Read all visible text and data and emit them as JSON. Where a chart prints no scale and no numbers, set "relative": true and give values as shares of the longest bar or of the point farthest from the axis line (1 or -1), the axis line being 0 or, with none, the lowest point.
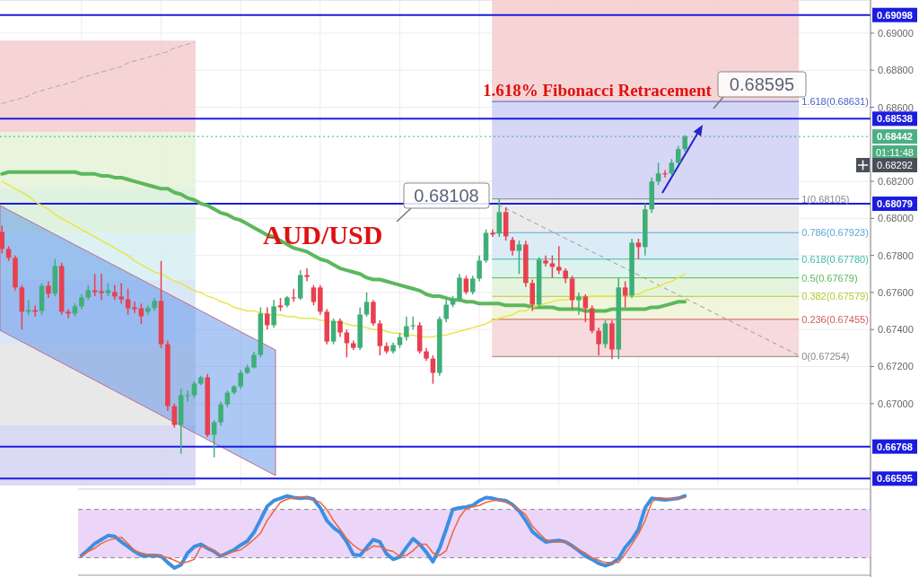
{
  "chart_data": [
    {
      "type": "candlestick",
      "title": "AUD/USD",
      "tick_labels": "y",
      "grid": true,
      "categories": [
        null,
        null,
        null,
        null,
        null,
        null,
        null,
        null,
        null,
        null,
        null,
        null,
        null,
        null,
        null,
        null,
        null,
        null,
        null,
        null,
        null,
        null,
        null,
        null,
        null,
        null,
        null,
        null,
        null,
        null,
        null,
        null,
        null,
        null,
        null,
        null,
        null,
        null,
        null,
        null,
        null,
        null,
        null,
        null,
        null,
        null,
        null,
        null,
        null,
        null,
        null,
        null,
        null,
        null,
        null,
        null,
        null,
        null,
        null,
        null,
        null,
        null,
        null,
        null,
        null,
        null,
        null,
        null,
        null,
        null,
        null,
        null,
        null,
        null,
        null,
        null,
        null,
        null,
        null,
        null,
        null,
        null,
        null,
        null,
        null,
        null,
        null,
        null,
        null,
        null,
        null,
        null,
        null,
        null,
        null,
        null,
        null,
        null,
        null,
        null,
        null,
        null,
        null,
        null
      ],
      "ohlc": [
        [
          0.67927,
          0.6796,
          0.6781,
          0.67835
        ],
        [
          0.67835,
          0.6785,
          0.6777,
          0.67787
        ],
        [
          0.67787,
          0.678,
          0.6761,
          0.67627
        ],
        [
          0.67627,
          0.6764,
          0.674,
          0.67496
        ],
        [
          0.67496,
          0.6756,
          0.6748,
          0.67505
        ],
        [
          0.67505,
          0.6753,
          0.6747,
          0.67496
        ],
        [
          0.675,
          0.6765,
          0.6748,
          0.67636
        ],
        [
          0.67636,
          0.6766,
          0.6757,
          0.67593
        ],
        [
          0.67593,
          0.6778,
          0.6758,
          0.67743
        ],
        [
          0.67743,
          0.6776,
          0.6748,
          0.67496
        ],
        [
          0.67496,
          0.6751,
          0.6746,
          0.67486
        ],
        [
          0.67486,
          0.6754,
          0.6747,
          0.67525
        ],
        [
          0.67525,
          0.6759,
          0.6751,
          0.67573
        ],
        [
          0.67573,
          0.6764,
          0.6756,
          0.67612
        ],
        [
          0.67612,
          0.677,
          0.6758,
          0.67602
        ],
        [
          0.67607,
          0.677,
          0.6756,
          0.67597
        ],
        [
          0.67597,
          0.6765,
          0.6758,
          0.67612
        ],
        [
          0.67602,
          0.6764,
          0.6756,
          0.67578
        ],
        [
          0.67578,
          0.6765,
          0.6754,
          0.67563
        ],
        [
          0.67563,
          0.6762,
          0.6748,
          0.67515
        ],
        [
          0.6752,
          0.6755,
          0.6749,
          0.6751
        ],
        [
          0.67515,
          0.6754,
          0.6743,
          0.67471
        ],
        [
          0.67496,
          0.6753,
          0.6748,
          0.67515
        ],
        [
          0.67515,
          0.6757,
          0.675,
          0.67554
        ],
        [
          0.67554,
          0.6777,
          0.673,
          0.67321
        ],
        [
          0.67321,
          0.6734,
          0.6696,
          0.66986
        ],
        [
          0.66986,
          0.67,
          0.6687,
          0.66885
        ],
        [
          0.66885,
          0.6708,
          0.6673,
          0.67045
        ],
        [
          0.6704,
          0.6707,
          0.6701,
          0.67045
        ],
        [
          0.67045,
          0.6712,
          0.6703,
          0.67108
        ],
        [
          0.67108,
          0.6715,
          0.671,
          0.67142
        ],
        [
          0.67142,
          0.6716,
          0.6682,
          0.66831
        ],
        [
          0.66831,
          0.6691,
          0.6671,
          0.66899
        ],
        [
          0.66899,
          0.6701,
          0.6688,
          0.66996
        ],
        [
          0.66996,
          0.6707,
          0.6698,
          0.67059
        ],
        [
          0.67059,
          0.671,
          0.6705,
          0.67093
        ],
        [
          0.67093,
          0.6718,
          0.6708,
          0.67166
        ],
        [
          0.67166,
          0.6721,
          0.6716,
          0.67195
        ],
        [
          0.67195,
          0.6728,
          0.6719,
          0.67263
        ],
        [
          0.67263,
          0.6752,
          0.6725,
          0.67486
        ],
        [
          0.67486,
          0.6752,
          0.674,
          0.67423
        ],
        [
          0.67423,
          0.6756,
          0.6741,
          0.67525
        ],
        [
          0.6753,
          0.6757,
          0.675,
          0.6752
        ],
        [
          0.6753,
          0.6758,
          0.6752,
          0.67573
        ],
        [
          0.67573,
          0.6762,
          0.6755,
          0.67568
        ],
        [
          0.67568,
          0.6772,
          0.6756,
          0.67694
        ],
        [
          0.67694,
          0.6773,
          0.6766,
          0.67684
        ],
        [
          0.67627,
          0.6764,
          0.6753,
          0.67549
        ],
        [
          0.67627,
          0.6764,
          0.6748,
          0.67496
        ],
        [
          0.67496,
          0.6751,
          0.6732,
          0.67335
        ],
        [
          0.67335,
          0.6746,
          0.6732,
          0.67447
        ],
        [
          0.67447,
          0.6746,
          0.6736,
          0.67384
        ],
        [
          0.67384,
          0.674,
          0.6725,
          0.67326
        ],
        [
          0.67326,
          0.6734,
          0.6729,
          0.67301
        ],
        [
          0.67301,
          0.6752,
          0.6729,
          0.67481
        ],
        [
          0.67481,
          0.676,
          0.6747,
          0.67549
        ],
        [
          0.67549,
          0.6756,
          0.6742,
          0.67433
        ],
        [
          0.67433,
          0.6745,
          0.6726,
          0.67311
        ],
        [
          0.67311,
          0.6733,
          0.6727,
          0.67282
        ],
        [
          0.67282,
          0.6733,
          0.6727,
          0.67316
        ],
        [
          0.67316,
          0.6738,
          0.673,
          0.67359
        ],
        [
          0.67359,
          0.6747,
          0.6734,
          0.67418
        ],
        [
          0.67418,
          0.6747,
          0.674,
          0.67423
        ],
        [
          0.67423,
          0.6744,
          0.6727,
          0.67282
        ],
        [
          0.67282,
          0.673,
          0.6723,
          0.67243
        ],
        [
          0.67243,
          0.6726,
          0.67107,
          0.67166
        ],
        [
          0.67166,
          0.6747,
          0.6715,
          0.67457
        ],
        [
          0.67457,
          0.6756,
          0.6744,
          0.67534
        ],
        [
          0.67534,
          0.6758,
          0.6752,
          0.67563
        ],
        [
          0.67563,
          0.677,
          0.6755,
          0.6768
        ],
        [
          0.67675,
          0.6769,
          0.6759,
          0.67602
        ],
        [
          0.67602,
          0.6769,
          0.6759,
          0.67675
        ],
        [
          0.67675,
          0.678,
          0.6766,
          0.67772
        ],
        [
          0.67772,
          0.6794,
          0.6776,
          0.67922
        ],
        [
          0.67922,
          0.6794,
          0.679,
          0.67913
        ],
        [
          0.67918,
          0.68105,
          0.679,
          0.68034
        ],
        [
          0.68034,
          0.6806,
          0.6788,
          0.67903
        ],
        [
          0.67884,
          0.679,
          0.678,
          0.67825
        ],
        [
          0.67825,
          0.6788,
          0.677,
          0.67859
        ],
        [
          0.67859,
          0.6788,
          0.6763,
          0.67651
        ],
        [
          0.67651,
          0.6767,
          0.675,
          0.67534
        ],
        [
          0.67534,
          0.6779,
          0.6752,
          0.67777
        ],
        [
          0.67772,
          0.678,
          0.6774,
          0.67757
        ],
        [
          0.67757,
          0.678,
          0.6768,
          0.67738
        ],
        [
          0.67738,
          0.6785,
          0.677,
          0.67718
        ],
        [
          0.67718,
          0.6773,
          0.6765,
          0.67675
        ],
        [
          0.67675,
          0.6769,
          0.6751,
          0.67558
        ],
        [
          0.67558,
          0.676,
          0.6748,
          0.67578
        ],
        [
          0.67578,
          0.6759,
          0.6744,
          0.67515
        ],
        [
          0.67515,
          0.6753,
          0.6738,
          0.67393
        ],
        [
          0.67393,
          0.6741,
          0.6726,
          0.67321
        ],
        [
          0.67321,
          0.6745,
          0.673,
          0.67433
        ],
        [
          0.67433,
          0.6745,
          0.6724,
          0.67292
        ],
        [
          0.67292,
          0.6768,
          0.6724,
          0.67627
        ],
        [
          0.67627,
          0.6766,
          0.6752,
          0.67583
        ],
        [
          0.67583,
          0.6789,
          0.6757,
          0.67869
        ],
        [
          0.67869,
          0.6789,
          0.6778,
          0.67845
        ],
        [
          0.67845,
          0.6808,
          0.678,
          0.68049
        ],
        [
          0.68049,
          0.6822,
          0.6803,
          0.68199
        ],
        [
          0.68199,
          0.683,
          0.6818,
          0.68243
        ],
        [
          0.68243,
          0.6826,
          0.6822,
          0.68238
        ],
        [
          0.68243,
          0.6832,
          0.6823,
          0.68301
        ],
        [
          0.68301,
          0.6839,
          0.6829,
          0.68374
        ],
        [
          0.68374,
          0.6845,
          0.6836,
          0.68442
        ]
      ],
      "series": [
        {
          "type": "line",
          "color": "#5cb85c",
          "values": [
            0.6824,
            0.6825,
            0.6825,
            0.6825,
            0.6825,
            0.6825,
            0.6825,
            0.6825,
            0.6825,
            0.6825,
            0.6825,
            0.6825,
            0.6824,
            0.6824,
            0.6824,
            0.6823,
            0.6823,
            0.6822,
            0.6822,
            0.6821,
            0.682,
            0.6819,
            0.6818,
            0.6817,
            0.6816,
            0.6816,
            0.6814,
            0.6813,
            0.6811,
            0.681,
            0.6808,
            0.6807,
            0.6805,
            0.6803,
            0.6802,
            0.68,
            0.6799,
            0.6797,
            0.6795,
            0.6793,
            0.6791,
            0.679,
            0.6788,
            0.6786,
            0.6784,
            0.6783,
            0.6782,
            0.678,
            0.6778,
            0.6777,
            0.6775,
            0.6773,
            0.6772,
            0.6771,
            0.677,
            0.6768,
            0.6767,
            0.6767,
            0.6766,
            0.6765,
            0.6764,
            0.6763,
            0.6762,
            0.6761,
            0.6759,
            0.6758,
            0.6758,
            0.6757,
            0.6756,
            0.6756,
            0.6755,
            0.6755,
            0.6754,
            0.6754,
            0.6754,
            0.6754,
            0.6753,
            0.6753,
            0.6753,
            0.6753,
            0.6752,
            0.6752,
            0.6752,
            0.6752,
            0.6751,
            0.6751,
            0.6751,
            0.6751,
            0.675,
            0.675,
            0.675,
            0.675,
            0.6751,
            0.6751,
            0.6751,
            0.6751,
            0.6751,
            0.6751,
            0.6752,
            0.6752,
            0.6753,
            0.6754,
            0.6755,
            0.6755
          ]
        },
        {
          "type": "line",
          "color": "#e6e64a",
          "values": [
            0.682,
            0.6818,
            0.6816,
            0.6814,
            0.6812,
            0.6809,
            0.6807,
            0.6805,
            0.6802,
            0.68,
            0.6798,
            0.6796,
            0.6794,
            0.6792,
            0.679,
            0.6788,
            0.6786,
            0.6784,
            0.6782,
            0.678,
            0.6777,
            0.6775,
            0.6773,
            0.6771,
            0.677,
            0.6768,
            0.6766,
            0.6765,
            0.6763,
            0.6761,
            0.676,
            0.6758,
            0.6757,
            0.6755,
            0.6754,
            0.6752,
            0.6751,
            0.675,
            0.675,
            0.6749,
            0.6748,
            0.6748,
            0.6748,
            0.6747,
            0.6747,
            0.6746,
            0.6746,
            0.6746,
            0.6745,
            0.6745,
            0.6744,
            0.6744,
            0.6743,
            0.6742,
            0.6742,
            0.6741,
            0.674,
            0.674,
            0.6739,
            0.6738,
            0.6738,
            0.6737,
            0.6737,
            0.6736,
            0.6736,
            0.6736,
            0.6737,
            0.6737,
            0.6738,
            0.6739,
            0.674,
            0.6741,
            0.6742,
            0.6743,
            0.6745,
            0.6746,
            0.6747,
            0.6748,
            0.675,
            0.675,
            0.6752,
            0.6753,
            0.6754,
            0.6755,
            0.6756,
            0.6756,
            0.6757,
            0.6757,
            0.6757,
            0.6758,
            0.6758,
            0.6758,
            0.6758,
            0.6758,
            0.6758,
            0.6759,
            0.6759,
            0.6761,
            0.6762,
            0.6763,
            0.6765,
            0.6766,
            0.6768,
            0.677
          ]
        },
        {
          "type": "line",
          "color": "#aaaaaa",
          "line_style": "dashed",
          "values": [
            0.6862,
            0.6863,
            0.6864,
            0.6865,
            0.6866,
            0.6868,
            0.6869,
            0.687,
            0.6871,
            0.6872,
            0.6873,
            0.6874,
            0.6876,
            0.6877,
            0.6878,
            0.6879,
            0.688,
            0.6881,
            0.6882,
            0.6884,
            0.6885,
            0.6886,
            0.6887,
            0.6888,
            0.6889,
            0.689,
            0.6892,
            0.6893,
            0.6894,
            0.6895,
            null,
            null,
            null,
            null,
            null,
            null,
            null,
            null,
            null,
            null,
            null,
            null,
            null,
            null,
            null,
            null,
            null,
            null,
            null,
            null,
            null,
            null,
            null,
            null,
            null,
            null,
            null,
            null,
            null,
            null,
            null,
            null,
            null,
            null,
            null,
            null,
            null,
            null,
            null,
            null,
            null,
            null,
            null,
            null,
            null,
            null,
            null,
            null,
            null,
            null,
            null,
            null,
            null,
            null,
            null,
            null,
            null,
            null,
            null,
            null,
            null,
            null,
            null,
            null,
            null,
            null,
            null,
            null,
            null,
            null,
            null,
            null,
            null,
            null
          ]
        }
      ],
      "ylim": [
        0.66558,
        0.69179
      ],
      "yticks": [
        {
          "value": 0.67,
          "label": "0.67000"
        },
        {
          "value": 0.672,
          "label": "0.67200"
        },
        {
          "value": 0.674,
          "label": "0.67400"
        },
        {
          "value": 0.676,
          "label": "0.67600"
        },
        {
          "value": 0.678,
          "label": "0.67800"
        },
        {
          "value": 0.68,
          "label": "0.68000"
        },
        {
          "value": 0.682,
          "label": "0.68200"
        },
        {
          "value": 0.686,
          "label": "0.68600"
        },
        {
          "value": 0.688,
          "label": "0.68800"
        },
        {
          "value": 0.69,
          "label": "0.69000"
        }
      ],
      "ref_lines": [
        {
          "axis": "y",
          "value": 0.69098,
          "label": "0.69098",
          "color": "#1c1ce0"
        },
        {
          "axis": "y",
          "value": 0.68538,
          "label": "0.68538",
          "color": "#1c1ce0"
        },
        {
          "axis": "y",
          "value": 0.68079,
          "label": "0.68079",
          "color": "#1c1ce0"
        },
        {
          "axis": "y",
          "value": 0.66768,
          "label": "0.66768",
          "color": "#1c1ce0"
        },
        {
          "axis": "y",
          "value": 0.66595,
          "label": "0.66595",
          "color": "#1c1ce0"
        },
        {
          "axis": "y",
          "value": 0.68442,
          "label": "0.68442",
          "color": "#4cae82",
          "line_style": "dotted"
        },
        {
          "axis": "y",
          "value": 0.68631,
          "label": "1.618(0.68631)",
          "color": "#4a5fc0"
        },
        {
          "axis": "y",
          "value": 0.68105,
          "label": "1(0.68105)",
          "color": "#888888"
        },
        {
          "axis": "y",
          "value": 0.67923,
          "label": "0.786(0.67923)",
          "color": "#5aa7d8"
        },
        {
          "axis": "y",
          "value": 0.6778,
          "label": "0.618(0.67780)",
          "color": "#3dbba5"
        },
        {
          "axis": "y",
          "value": 0.67679,
          "label": "0.5(0.67679)",
          "color": "#5cb85c"
        },
        {
          "axis": "y",
          "value": 0.67579,
          "label": "0.382(0.67579)",
          "color": "#b8c832"
        },
        {
          "axis": "y",
          "value": 0.67455,
          "label": "0.236(0.67455)",
          "color": "#d05a5a"
        },
        {
          "axis": "y",
          "value": 0.67254,
          "label": "0(0.67254)",
          "color": "#888888"
        }
      ],
      "bands": [
        {
          "axis": "y",
          "from": 0.68631,
          "to": 0.69179,
          "color": "#f4cccf"
        },
        {
          "axis": "y",
          "from": 0.68105,
          "to": 0.68631,
          "color": "#cfcff6"
        },
        {
          "axis": "y",
          "from": 0.67923,
          "to": 0.68105,
          "color": "#e8e8e8"
        },
        {
          "axis": "y",
          "from": 0.6778,
          "to": 0.67923,
          "color": "#d6e9f6"
        },
        {
          "axis": "y",
          "from": 0.67679,
          "to": 0.6778,
          "color": "#d6f1eb"
        },
        {
          "axis": "y",
          "from": 0.67579,
          "to": 0.67679,
          "color": "#e0f2d8"
        },
        {
          "axis": "y",
          "from": 0.67455,
          "to": 0.67579,
          "color": "#eff3d6"
        },
        {
          "axis": "y",
          "from": 0.67254,
          "to": 0.67455,
          "color": "#f4d4d6"
        },
        {
          "axis": "y",
          "from": 0.68466,
          "to": 0.6896,
          "color": "#f4cccf"
        },
        {
          "axis": "y",
          "from": 0.68165,
          "to": 0.68466,
          "color": "#e4f2d6"
        },
        {
          "axis": "y",
          "from": 0.67918,
          "to": 0.68165,
          "color": "#d9f0d9"
        },
        {
          "axis": "y",
          "from": 0.6767,
          "to": 0.67918,
          "color": "#d6eef1"
        },
        {
          "axis": "y",
          "from": 0.67321,
          "to": 0.6767,
          "color": "#d3e4f4"
        },
        {
          "axis": "y",
          "from": 0.66885,
          "to": 0.67321,
          "color": "#e4e4e4"
        },
        {
          "axis": "y",
          "from": 0.66558,
          "to": 0.66885,
          "color": "#d4d4f3"
        }
      ],
      "annotations": [
        "1.618% Fibonacci Retracement",
        "0.68108",
        "0.68595",
        "01:11:48",
        "0.68292"
      ]
    },
    {
      "type": "line",
      "relative": true,
      "categories": [
        null,
        null,
        null,
        null,
        null,
        null,
        null,
        null,
        null,
        null,
        null,
        null,
        null,
        null,
        null,
        null,
        null,
        null,
        null,
        null,
        null,
        null,
        null,
        null,
        null,
        null,
        null,
        null,
        null,
        null,
        null,
        null,
        null,
        null,
        null,
        null,
        null,
        null,
        null,
        null,
        null,
        null,
        null,
        null,
        null,
        null,
        null,
        null,
        null,
        null,
        null,
        null,
        null,
        null,
        null,
        null,
        null,
        null,
        null,
        null,
        null,
        null,
        null,
        null,
        null,
        null,
        null,
        null,
        null,
        null,
        null,
        null,
        null,
        null,
        null,
        null,
        null,
        null,
        null,
        null,
        null,
        null,
        null,
        null,
        null,
        null,
        null,
        null,
        null,
        null,
        null,
        null,
        null,
        null,
        null,
        null,
        null,
        null,
        null,
        null,
        null,
        null,
        null,
        null
      ],
      "series": [
        {
          "color": "#3d8fe0",
          "values": [
            null,
            null,
            null,
            null,
            null,
            null,
            null,
            null,
            null,
            null,
            null,
            null,
            0.25,
            0.32,
            0.4,
            0.45,
            0.5,
            0.49,
            0.42,
            0.36,
            0.3,
            0.25,
            0.25,
            0.25,
            0.24,
            0.16,
            0.09,
            0.13,
            0.28,
            0.36,
            0.39,
            0.34,
            0.3,
            0.24,
            0.28,
            0.32,
            0.38,
            0.43,
            0.54,
            0.7,
            0.87,
            0.94,
            0.97,
            1,
            0.98,
            0.97,
            0.98,
            0.96,
            0.85,
            0.69,
            0.6,
            0.54,
            0.42,
            0.26,
            0.25,
            0.35,
            0.45,
            0.42,
            0.27,
            0.2,
            0.23,
            0.35,
            0.46,
            0.39,
            0.29,
            0.17,
            0.34,
            0.58,
            0.83,
            0.85,
            0.86,
            0.88,
            0.94,
            0.98,
            0.97,
            0.95,
            0.94,
            0.89,
            0.81,
            0.69,
            0.55,
            0.48,
            0.42,
            0.43,
            0.44,
            0.42,
            0.37,
            0.31,
            0.24,
            0.2,
            0.15,
            0.12,
            0.15,
            0.21,
            0.35,
            0.45,
            0.58,
            0.85,
            0.97,
            0.96,
            0.95,
            0.96,
            0.97,
            1
          ]
        },
        {
          "color": "#f0643c",
          "values": [
            null,
            null,
            null,
            null,
            null,
            null,
            null,
            null,
            null,
            null,
            null,
            null,
            0.24,
            0.3,
            0.34,
            0.4,
            0.44,
            0.46,
            0.48,
            0.4,
            0.31,
            0.28,
            0.26,
            0.25,
            0.24,
            0.22,
            0.19,
            0.15,
            0.17,
            0.2,
            0.36,
            0.35,
            0.31,
            0.24,
            0.27,
            0.3,
            0.32,
            0.38,
            0.45,
            0.53,
            0.69,
            0.81,
            0.92,
            0.96,
            0.98,
            0.98,
            0.98,
            0.95,
            0.92,
            0.83,
            0.69,
            0.58,
            0.46,
            0.38,
            0.32,
            0.31,
            0.37,
            0.36,
            0.32,
            0.3,
            0.24,
            0.25,
            0.31,
            0.39,
            0.39,
            0.28,
            0.25,
            0.31,
            0.54,
            0.73,
            0.84,
            0.86,
            0.88,
            0.92,
            0.94,
            0.95,
            0.92,
            0.88,
            0.83,
            0.76,
            0.62,
            0.53,
            0.45,
            0.42,
            0.42,
            0.42,
            0.37,
            0.32,
            0.28,
            0.22,
            0.19,
            0.16,
            0.16,
            0.16,
            0.27,
            0.39,
            0.52,
            0.69,
            0.92,
            0.98,
            0.97,
            0.96,
            0.97,
            0.98
          ]
        }
      ],
      "bands": [
        {
          "axis": "y",
          "from": 0.22,
          "to": 0.83,
          "color": "#e8cff9"
        }
      ],
      "ref_lines": [
        {
          "axis": "y",
          "value": 0.83,
          "color": "#888888",
          "line_style": "dashed"
        },
        {
          "axis": "y",
          "value": 0.22,
          "color": "#888888",
          "line_style": "dashed"
        }
      ]
    }
  ]
}
